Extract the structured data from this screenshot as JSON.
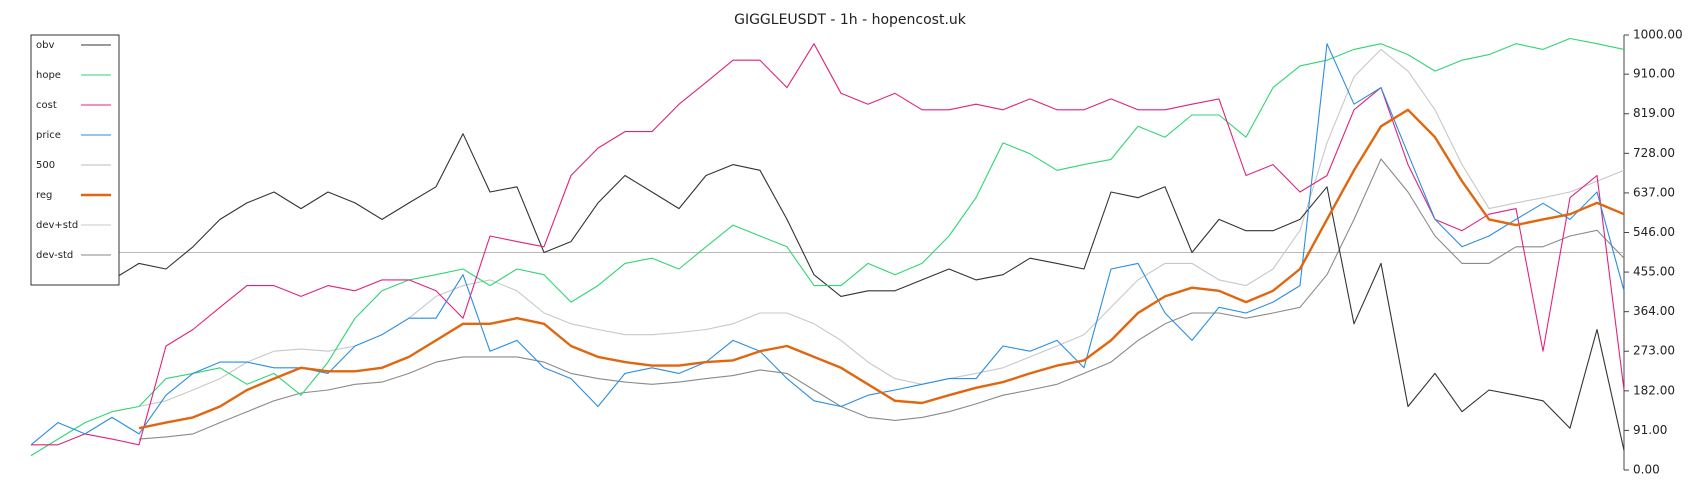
{
  "chart_data": {
    "type": "line",
    "title": "GIGGLEUSDT - 1h - hopencost.uk",
    "legend": "upper left",
    "grid": false,
    "ylim": [
      0,
      1000
    ],
    "yticks": [
      {
        "value": 0,
        "label": "0.00"
      },
      {
        "value": 91,
        "label": "91.00"
      },
      {
        "value": 182,
        "label": "182.00"
      },
      {
        "value": 273,
        "label": "273.00"
      },
      {
        "value": 364,
        "label": "364.00"
      },
      {
        "value": 455,
        "label": "455.00"
      },
      {
        "value": 546,
        "label": "546.00"
      },
      {
        "value": 637,
        "label": "637.00"
      },
      {
        "value": 728,
        "label": "728.00"
      },
      {
        "value": 819,
        "label": "819.00"
      },
      {
        "value": 910,
        "label": "910.00"
      },
      {
        "value": 1000,
        "label": "1000.00"
      }
    ],
    "series": [
      {
        "name": "obv",
        "color": "#333333",
        "values": [
          449,
          475,
          462,
          437,
          475,
          462,
          513,
          576,
          614,
          639,
          601,
          639,
          614,
          576,
          614,
          651,
          773,
          639,
          651,
          500,
          525,
          614,
          677,
          639,
          601,
          677,
          702,
          689,
          576,
          449,
          399,
          412,
          412,
          437,
          462,
          437,
          449,
          487,
          475,
          462,
          639,
          626,
          651,
          500,
          576,
          550,
          550,
          576,
          651,
          336,
          475,
          146,
          222,
          134,
          184,
          172,
          159,
          96,
          323,
          45
        ]
      },
      {
        "name": "hope",
        "color": "#2fd673",
        "values": [
          33,
          71,
          109,
          134,
          146,
          210,
          222,
          235,
          197,
          222,
          172,
          248,
          349,
          412,
          437,
          449,
          462,
          424,
          462,
          449,
          386,
          424,
          475,
          487,
          462,
          513,
          563,
          538,
          513,
          424,
          424,
          475,
          449,
          475,
          538,
          626,
          752,
          727,
          689,
          702,
          714,
          790,
          765,
          816,
          816,
          765,
          879,
          929,
          942,
          967,
          980,
          955,
          917,
          942,
          955,
          980,
          967,
          992,
          980,
          967
        ]
      },
      {
        "name": "cost",
        "color": "#e0237d",
        "values": [
          58,
          58,
          83,
          71,
          58,
          285,
          323,
          374,
          424,
          424,
          399,
          424,
          412,
          437,
          437,
          412,
          349,
          538,
          525,
          513,
          677,
          740,
          778,
          778,
          841,
          891,
          942,
          942,
          879,
          980,
          866,
          841,
          866,
          828,
          828,
          841,
          828,
          853,
          828,
          828,
          853,
          828,
          828,
          841,
          853,
          677,
          702,
          639,
          677,
          828,
          879,
          702,
          576,
          550,
          588,
          601,
          273,
          626,
          677,
          184
        ]
      },
      {
        "name": "price",
        "color": "#2b8ee0",
        "values": [
          58,
          109,
          83,
          121,
          83,
          172,
          222,
          248,
          248,
          235,
          235,
          222,
          285,
          311,
          349,
          349,
          449,
          273,
          298,
          235,
          210,
          146,
          222,
          235,
          222,
          248,
          298,
          273,
          210,
          159,
          146,
          172,
          184,
          197,
          210,
          210,
          285,
          273,
          298,
          235,
          462,
          475,
          361,
          298,
          374,
          361,
          386,
          424,
          980,
          841,
          879,
          727,
          576,
          513,
          538,
          576,
          613,
          576,
          639,
          412
        ]
      },
      {
        "name": "500",
        "color": "#bbbbbb",
        "values": [
          500,
          500,
          500,
          500,
          500,
          500,
          500,
          500,
          500,
          500,
          500,
          500,
          500,
          500,
          500,
          500,
          500,
          500,
          500,
          500,
          500,
          500,
          500,
          500,
          500,
          500,
          500,
          500,
          500,
          500,
          500,
          500,
          500,
          500,
          500,
          500,
          500,
          500,
          500,
          500,
          500,
          500,
          500,
          500,
          500,
          500,
          500,
          500,
          500,
          500,
          500,
          500,
          500,
          500,
          500,
          500,
          500,
          500,
          500,
          500
        ]
      },
      {
        "name": "reg",
        "color": "#e0660f",
        "values": [
          null,
          null,
          null,
          null,
          96,
          109,
          121,
          146,
          184,
          210,
          235,
          227,
          227,
          235,
          260,
          298,
          336,
          336,
          349,
          336,
          285,
          260,
          248,
          240,
          240,
          248,
          252,
          273,
          285,
          260,
          235,
          197,
          159,
          154,
          172,
          189,
          202,
          222,
          240,
          252,
          298,
          361,
          399,
          419,
          412,
          386,
          412,
          462,
          576,
          689,
          790,
          828,
          765,
          664,
          576,
          563,
          576,
          588,
          614,
          588
        ]
      },
      {
        "name": "dev+std",
        "color": "#c8c8c8",
        "values": [
          null,
          null,
          null,
          null,
          146,
          159,
          184,
          210,
          248,
          273,
          278,
          273,
          285,
          311,
          349,
          399,
          424,
          437,
          412,
          361,
          336,
          323,
          311,
          311,
          316,
          323,
          336,
          361,
          361,
          336,
          298,
          248,
          210,
          197,
          210,
          222,
          235,
          260,
          285,
          311,
          374,
          437,
          475,
          475,
          437,
          424,
          462,
          551,
          752,
          904,
          967,
          917,
          828,
          702,
          601,
          614,
          626,
          639,
          664,
          689
        ]
      },
      {
        "name": "dev-std",
        "color": "#8a8a8a",
        "values": [
          null,
          null,
          null,
          null,
          71,
          76,
          83,
          109,
          134,
          159,
          177,
          184,
          197,
          202,
          222,
          248,
          260,
          260,
          260,
          248,
          222,
          210,
          202,
          197,
          202,
          210,
          217,
          230,
          222,
          184,
          146,
          121,
          114,
          121,
          134,
          152,
          172,
          184,
          197,
          222,
          248,
          298,
          336,
          361,
          361,
          349,
          361,
          374,
          449,
          576,
          715,
          639,
          538,
          475,
          475,
          513,
          513,
          538,
          551,
          487
        ]
      }
    ]
  }
}
